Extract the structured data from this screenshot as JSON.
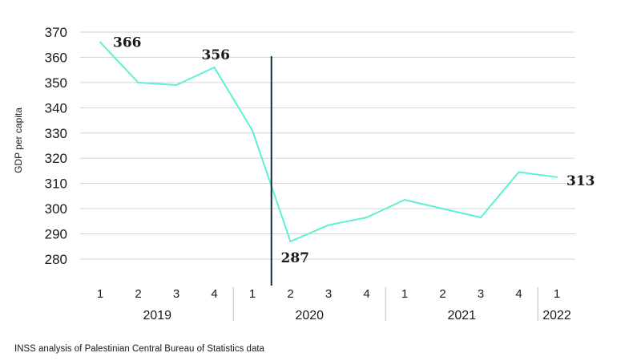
{
  "chart_data": {
    "type": "line",
    "ylabel": "GDP per capita",
    "xlabel": "",
    "ylim": [
      270,
      370
    ],
    "yticks": [
      280,
      290,
      300,
      310,
      320,
      330,
      340,
      350,
      360,
      370
    ],
    "grid": true,
    "categories": [
      "1",
      "2",
      "3",
      "4",
      "1",
      "2",
      "3",
      "4",
      "1",
      "2",
      "3",
      "4",
      "1"
    ],
    "groups": [
      {
        "label": "2019",
        "count": 4
      },
      {
        "label": "2020",
        "count": 4
      },
      {
        "label": "2021",
        "count": 4
      },
      {
        "label": "2022",
        "count": 1
      }
    ],
    "values": [
      366,
      350,
      349,
      356,
      331,
      287,
      293.5,
      296.5,
      303.5,
      300,
      296.5,
      314.5,
      312.5
    ],
    "line_color": "#5ef0d4",
    "marker_color": "#0e2f3a",
    "marker_between": [
      4,
      5
    ],
    "data_labels": [
      {
        "index": 0,
        "text": "366"
      },
      {
        "index": 3,
        "text": "356"
      },
      {
        "index": 5,
        "text": "287"
      },
      {
        "index": 12,
        "text": "313"
      }
    ]
  },
  "footer": {
    "source": "INSS analysis of Palestinian Central Bureau of Statistics data"
  }
}
